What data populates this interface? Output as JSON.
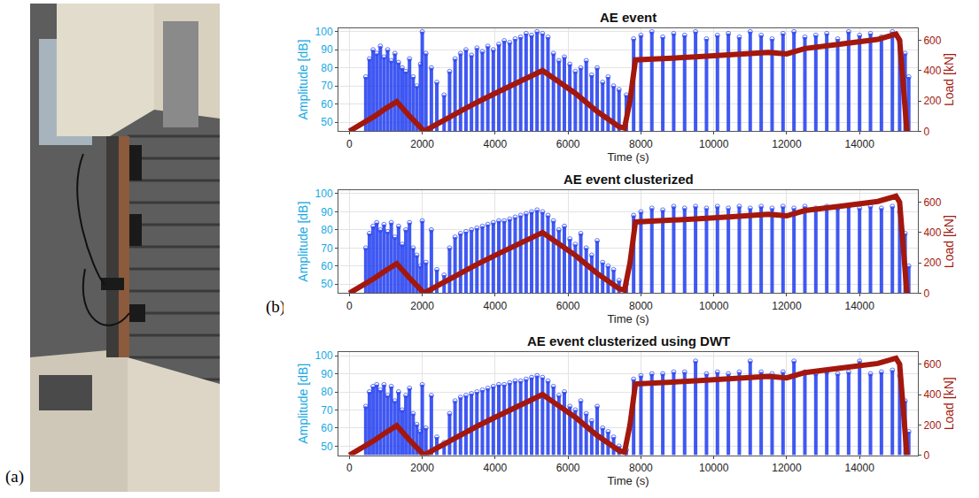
{
  "figure": {
    "panel_labels": [
      "(a)",
      "(b)"
    ]
  },
  "chart_data": [
    {
      "type": "stem",
      "title": "AE event",
      "x_label": "Time (s)",
      "y_label": "Amplitude [dB]",
      "y2_label": "Load [kN]",
      "xlim": [
        -300,
        15600
      ],
      "xticks": [
        0,
        2000,
        4000,
        6000,
        8000,
        10000,
        12000,
        14000
      ],
      "ylim": [
        45,
        102
      ],
      "yticks": [
        50,
        60,
        70,
        80,
        90,
        100
      ],
      "y2lim": [
        0,
        680
      ],
      "y2ticks": [
        0,
        200,
        400,
        600
      ],
      "grid": true,
      "series": [
        {
          "type": "stem",
          "color": "#1f3cf0",
          "marker": "circle-open",
          "x": [
            450,
            550,
            650,
            750,
            850,
            950,
            1050,
            1150,
            1250,
            1350,
            1450,
            1550,
            1650,
            1750,
            1850,
            1950,
            2000,
            2100,
            2250,
            2400,
            2600,
            2750,
            2900,
            3050,
            3200,
            3350,
            3500,
            3650,
            3800,
            3950,
            4100,
            4250,
            4400,
            4550,
            4700,
            4850,
            5000,
            5150,
            5300,
            5450,
            5600,
            5750,
            5900,
            6050,
            6200,
            6350,
            6500,
            6650,
            6800,
            6950,
            7100,
            7250,
            7400,
            7600,
            7800,
            8000,
            8300,
            8600,
            8900,
            9200,
            9500,
            9800,
            10100,
            10400,
            10700,
            11000,
            11300,
            11600,
            11900,
            12200,
            12500,
            12800,
            13100,
            13400,
            13700,
            14000,
            14300,
            14600,
            14900,
            15100,
            15250,
            15350
          ],
          "values": [
            75,
            85,
            90,
            88,
            92,
            86,
            90,
            84,
            88,
            83,
            80,
            78,
            85,
            75,
            70,
            82,
            100,
            88,
            80,
            72,
            65,
            78,
            85,
            88,
            90,
            87,
            91,
            89,
            92,
            90,
            93,
            95,
            94,
            96,
            97,
            99,
            98,
            100,
            99,
            97,
            88,
            84,
            86,
            82,
            78,
            80,
            84,
            76,
            80,
            72,
            75,
            70,
            68,
            65,
            96,
            98,
            100,
            97,
            99,
            98,
            100,
            96,
            98,
            99,
            97,
            100,
            98,
            96,
            99,
            100,
            97,
            98,
            99,
            96,
            100,
            98,
            99,
            97,
            100,
            95,
            88,
            75
          ]
        },
        {
          "type": "line",
          "axis": "y2",
          "color": "#a3170c",
          "line_style": "solid",
          "x": [
            0,
            300,
            700,
            1000,
            1300,
            1650,
            2050,
            2500,
            3000,
            3500,
            4000,
            4500,
            5000,
            5300,
            5600,
            6200,
            6800,
            7400,
            7550,
            7700,
            7850,
            8500,
            9500,
            10500,
            11500,
            12000,
            12500,
            13500,
            14500,
            15000,
            15100,
            15300
          ],
          "values": [
            0,
            40,
            100,
            150,
            195,
            100,
            0,
            60,
            130,
            190,
            250,
            310,
            370,
            400,
            350,
            250,
            130,
            30,
            20,
            200,
            470,
            475,
            490,
            505,
            520,
            510,
            545,
            575,
            605,
            640,
            600,
            0
          ]
        }
      ]
    },
    {
      "type": "stem",
      "title": "AE event clusterized",
      "x_label": "Time (s)",
      "y_label": "Amplitude [dB]",
      "y2_label": "Load [kN]",
      "xlim": [
        -300,
        15600
      ],
      "xticks": [
        0,
        2000,
        4000,
        6000,
        8000,
        10000,
        12000,
        14000
      ],
      "ylim": [
        45,
        102
      ],
      "yticks": [
        50,
        60,
        70,
        80,
        90,
        100
      ],
      "y2lim": [
        0,
        680
      ],
      "y2ticks": [
        0,
        200,
        400,
        600
      ],
      "grid": true,
      "series": [
        {
          "type": "stem",
          "color": "#1f3cf0",
          "marker": "circle-open",
          "x": [
            450,
            550,
            650,
            750,
            850,
            950,
            1050,
            1150,
            1250,
            1350,
            1450,
            1550,
            1650,
            1750,
            1850,
            1950,
            2000,
            2100,
            2250,
            2400,
            2600,
            2750,
            2900,
            3050,
            3200,
            3350,
            3500,
            3650,
            3800,
            3950,
            4100,
            4250,
            4400,
            4550,
            4700,
            4850,
            5000,
            5150,
            5300,
            5450,
            5600,
            5750,
            5900,
            6050,
            6200,
            6350,
            6500,
            6650,
            6800,
            6950,
            7100,
            7250,
            7400,
            7600,
            7800,
            8000,
            8300,
            8600,
            8900,
            9200,
            9500,
            9800,
            10100,
            10400,
            10700,
            11000,
            11300,
            11600,
            11900,
            12200,
            12500,
            12800,
            13100,
            13400,
            13700,
            14000,
            14300,
            14600,
            14900,
            15100,
            15250,
            15350
          ],
          "values": [
            70,
            78,
            82,
            84,
            80,
            83,
            79,
            84,
            76,
            82,
            72,
            80,
            84,
            70,
            66,
            60,
            85,
            62,
            80,
            58,
            55,
            70,
            76,
            78,
            79,
            80,
            81,
            82,
            83,
            84,
            85,
            85,
            86,
            87,
            88,
            89,
            90,
            91,
            90,
            88,
            85,
            80,
            82,
            75,
            72,
            78,
            70,
            66,
            74,
            62,
            60,
            58,
            52,
            50,
            88,
            90,
            92,
            91,
            93,
            92,
            93,
            92,
            93,
            92,
            93,
            92,
            93,
            92,
            93,
            92,
            93,
            92,
            93,
            92,
            93,
            92,
            93,
            92,
            93,
            90,
            78,
            60
          ]
        },
        {
          "type": "line",
          "axis": "y2",
          "color": "#a3170c",
          "line_style": "solid",
          "x": [
            0,
            300,
            700,
            1000,
            1300,
            1650,
            2050,
            2500,
            3000,
            3500,
            4000,
            4500,
            5000,
            5300,
            5600,
            6200,
            6800,
            7400,
            7550,
            7700,
            7850,
            8500,
            9500,
            10500,
            11500,
            12000,
            12500,
            13500,
            14500,
            15000,
            15100,
            15300
          ],
          "values": [
            0,
            40,
            100,
            150,
            195,
            100,
            0,
            60,
            130,
            190,
            250,
            310,
            370,
            400,
            350,
            250,
            130,
            30,
            20,
            200,
            470,
            475,
            490,
            505,
            520,
            510,
            545,
            575,
            605,
            640,
            600,
            0
          ]
        }
      ]
    },
    {
      "type": "stem",
      "title": "AE event clusterized using DWT",
      "x_label": "Time (s)",
      "y_label": "Amplitude [dB]",
      "y2_label": "Load [kN]",
      "xlim": [
        -300,
        15600
      ],
      "xticks": [
        0,
        2000,
        4000,
        6000,
        8000,
        10000,
        12000,
        14000
      ],
      "ylim": [
        45,
        102
      ],
      "yticks": [
        50,
        60,
        70,
        80,
        90,
        100
      ],
      "y2lim": [
        0,
        680
      ],
      "y2ticks": [
        0,
        200,
        400,
        600
      ],
      "grid": true,
      "series": [
        {
          "type": "stem",
          "color": "#1f3cf0",
          "marker": "circle-open",
          "x": [
            450,
            550,
            650,
            750,
            850,
            950,
            1050,
            1150,
            1250,
            1350,
            1450,
            1550,
            1650,
            1750,
            1850,
            1950,
            2000,
            2100,
            2250,
            2400,
            2600,
            2750,
            2900,
            3050,
            3200,
            3350,
            3500,
            3650,
            3800,
            3950,
            4100,
            4250,
            4400,
            4550,
            4700,
            4850,
            5000,
            5150,
            5300,
            5450,
            5600,
            5750,
            5900,
            6050,
            6200,
            6350,
            6500,
            6650,
            6800,
            6950,
            7100,
            7250,
            7400,
            7600,
            7800,
            8000,
            8300,
            8600,
            8900,
            9200,
            9500,
            9800,
            10100,
            10400,
            10700,
            11000,
            11300,
            11600,
            11900,
            12200,
            12500,
            12800,
            13100,
            13400,
            13700,
            14000,
            14300,
            14600,
            14900,
            15100,
            15250,
            15350
          ],
          "values": [
            72,
            80,
            83,
            84,
            81,
            84,
            78,
            83,
            75,
            80,
            70,
            78,
            82,
            68,
            62,
            58,
            84,
            60,
            78,
            55,
            52,
            68,
            75,
            77,
            78,
            79,
            80,
            81,
            82,
            83,
            84,
            84,
            85,
            86,
            86,
            87,
            88,
            89,
            88,
            86,
            83,
            78,
            80,
            72,
            70,
            75,
            68,
            64,
            72,
            60,
            58,
            55,
            50,
            48,
            87,
            89,
            90,
            90,
            91,
            91,
            97,
            90,
            91,
            90,
            91,
            97,
            91,
            90,
            91,
            97,
            91,
            90,
            91,
            90,
            91,
            97,
            90,
            91,
            92,
            89,
            75,
            58
          ]
        },
        {
          "type": "line",
          "axis": "y2",
          "color": "#a3170c",
          "line_style": "solid",
          "x": [
            0,
            300,
            700,
            1000,
            1300,
            1650,
            2050,
            2500,
            3000,
            3500,
            4000,
            4500,
            5000,
            5300,
            5600,
            6200,
            6800,
            7400,
            7550,
            7700,
            7850,
            8500,
            9500,
            10500,
            11500,
            12000,
            12500,
            13500,
            14500,
            15000,
            15100,
            15300
          ],
          "values": [
            0,
            40,
            100,
            150,
            195,
            100,
            0,
            60,
            130,
            190,
            250,
            310,
            370,
            400,
            350,
            250,
            130,
            30,
            20,
            200,
            470,
            475,
            490,
            505,
            520,
            510,
            545,
            575,
            605,
            640,
            600,
            0
          ]
        }
      ]
    }
  ]
}
